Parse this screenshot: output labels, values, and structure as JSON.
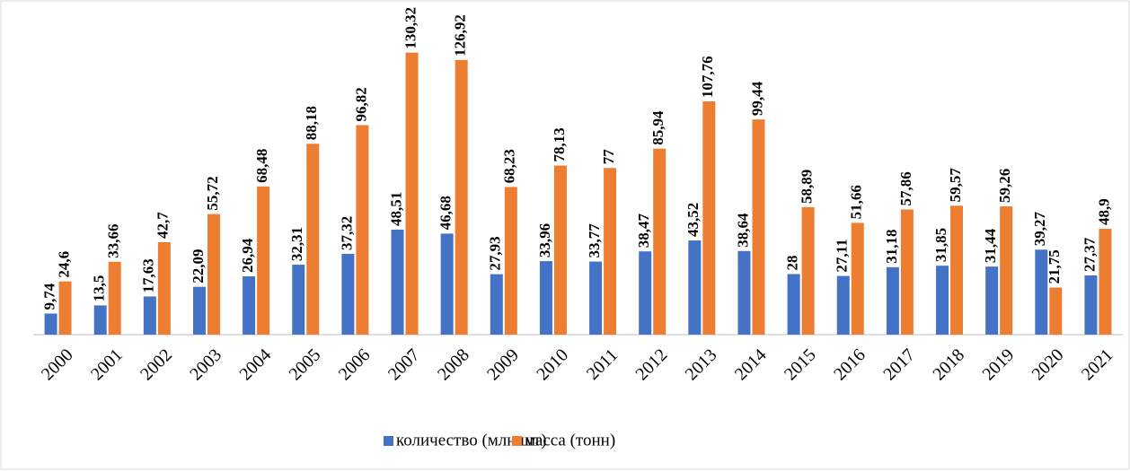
{
  "chart_data": {
    "type": "bar",
    "categories": [
      "2000",
      "2001",
      "2002",
      "2003",
      "2004",
      "2005",
      "2006",
      "2007",
      "2008",
      "2009",
      "2010",
      "2011",
      "2012",
      "2013",
      "2014",
      "2015",
      "2016",
      "2017",
      "2018",
      "2019",
      "2020",
      "2021"
    ],
    "series": [
      {
        "name": "количество (млн.шт)",
        "color": "#4472c4",
        "values": [
          9.74,
          13.5,
          17.63,
          22.09,
          26.94,
          32.31,
          37.32,
          48.51,
          46.68,
          27.93,
          33.96,
          33.77,
          38.47,
          43.52,
          38.64,
          28,
          27.11,
          31.18,
          31.85,
          31.44,
          39.27,
          27.37
        ],
        "value_labels": [
          "9,74",
          "13,5",
          "17,63",
          "22,09",
          "26,94",
          "32,31",
          "37,32",
          "48,51",
          "46,68",
          "27,93",
          "33,96",
          "33,77",
          "38,47",
          "43,52",
          "38,64",
          "28",
          "27,11",
          "31,18",
          "31,85",
          "31,44",
          "39,27",
          "27,37"
        ]
      },
      {
        "name": "масса (тонн)",
        "color": "#ed7d31",
        "values": [
          24.6,
          33.66,
          42.7,
          55.72,
          68.48,
          88.18,
          96.82,
          130.32,
          126.92,
          68.23,
          78.13,
          77,
          85.94,
          107.76,
          99.44,
          58.89,
          51.66,
          57.86,
          59.57,
          59.26,
          21.75,
          48.9
        ],
        "value_labels": [
          "24,6",
          "33,66",
          "42,7",
          "55,72",
          "68,48",
          "88,18",
          "96,82",
          "130,32",
          "126,92",
          "68,23",
          "78,13",
          "77",
          "85,94",
          "107,76",
          "99,44",
          "58,89",
          "51,66",
          "57,86",
          "59,57",
          "59,26",
          "21,75",
          "48,9"
        ]
      }
    ],
    "ylim": [
      0,
      148
    ],
    "legend": "bottom"
  }
}
